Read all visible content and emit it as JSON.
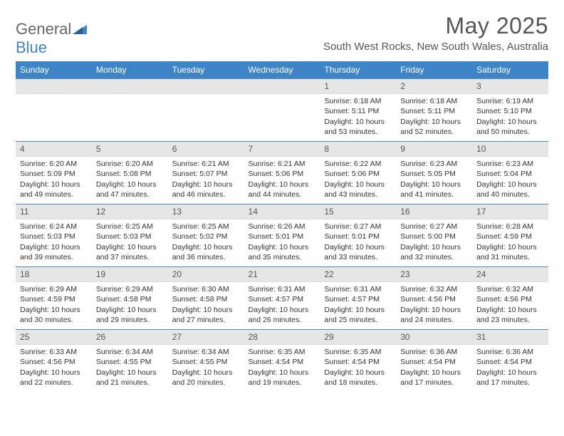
{
  "brand": {
    "text1": "General",
    "text2": "Blue"
  },
  "title": "May 2025",
  "location": "South West Rocks, New South Wales, Australia",
  "colors": {
    "header_bg": "#3d85c6",
    "header_text": "#ffffff",
    "daynum_bg": "#e6e6e6",
    "row_border": "#5b8bb5",
    "body_text": "#333333",
    "title_text": "#555555"
  },
  "weekdays": [
    "Sunday",
    "Monday",
    "Tuesday",
    "Wednesday",
    "Thursday",
    "Friday",
    "Saturday"
  ],
  "weeks": [
    [
      {
        "n": "",
        "sunrise": "",
        "sunset": "",
        "daylight": ""
      },
      {
        "n": "",
        "sunrise": "",
        "sunset": "",
        "daylight": ""
      },
      {
        "n": "",
        "sunrise": "",
        "sunset": "",
        "daylight": ""
      },
      {
        "n": "",
        "sunrise": "",
        "sunset": "",
        "daylight": ""
      },
      {
        "n": "1",
        "sunrise": "Sunrise: 6:18 AM",
        "sunset": "Sunset: 5:11 PM",
        "daylight": "Daylight: 10 hours and 53 minutes."
      },
      {
        "n": "2",
        "sunrise": "Sunrise: 6:18 AM",
        "sunset": "Sunset: 5:11 PM",
        "daylight": "Daylight: 10 hours and 52 minutes."
      },
      {
        "n": "3",
        "sunrise": "Sunrise: 6:19 AM",
        "sunset": "Sunset: 5:10 PM",
        "daylight": "Daylight: 10 hours and 50 minutes."
      }
    ],
    [
      {
        "n": "4",
        "sunrise": "Sunrise: 6:20 AM",
        "sunset": "Sunset: 5:09 PM",
        "daylight": "Daylight: 10 hours and 49 minutes."
      },
      {
        "n": "5",
        "sunrise": "Sunrise: 6:20 AM",
        "sunset": "Sunset: 5:08 PM",
        "daylight": "Daylight: 10 hours and 47 minutes."
      },
      {
        "n": "6",
        "sunrise": "Sunrise: 6:21 AM",
        "sunset": "Sunset: 5:07 PM",
        "daylight": "Daylight: 10 hours and 46 minutes."
      },
      {
        "n": "7",
        "sunrise": "Sunrise: 6:21 AM",
        "sunset": "Sunset: 5:06 PM",
        "daylight": "Daylight: 10 hours and 44 minutes."
      },
      {
        "n": "8",
        "sunrise": "Sunrise: 6:22 AM",
        "sunset": "Sunset: 5:06 PM",
        "daylight": "Daylight: 10 hours and 43 minutes."
      },
      {
        "n": "9",
        "sunrise": "Sunrise: 6:23 AM",
        "sunset": "Sunset: 5:05 PM",
        "daylight": "Daylight: 10 hours and 41 minutes."
      },
      {
        "n": "10",
        "sunrise": "Sunrise: 6:23 AM",
        "sunset": "Sunset: 5:04 PM",
        "daylight": "Daylight: 10 hours and 40 minutes."
      }
    ],
    [
      {
        "n": "11",
        "sunrise": "Sunrise: 6:24 AM",
        "sunset": "Sunset: 5:03 PM",
        "daylight": "Daylight: 10 hours and 39 minutes."
      },
      {
        "n": "12",
        "sunrise": "Sunrise: 6:25 AM",
        "sunset": "Sunset: 5:03 PM",
        "daylight": "Daylight: 10 hours and 37 minutes."
      },
      {
        "n": "13",
        "sunrise": "Sunrise: 6:25 AM",
        "sunset": "Sunset: 5:02 PM",
        "daylight": "Daylight: 10 hours and 36 minutes."
      },
      {
        "n": "14",
        "sunrise": "Sunrise: 6:26 AM",
        "sunset": "Sunset: 5:01 PM",
        "daylight": "Daylight: 10 hours and 35 minutes."
      },
      {
        "n": "15",
        "sunrise": "Sunrise: 6:27 AM",
        "sunset": "Sunset: 5:01 PM",
        "daylight": "Daylight: 10 hours and 33 minutes."
      },
      {
        "n": "16",
        "sunrise": "Sunrise: 6:27 AM",
        "sunset": "Sunset: 5:00 PM",
        "daylight": "Daylight: 10 hours and 32 minutes."
      },
      {
        "n": "17",
        "sunrise": "Sunrise: 6:28 AM",
        "sunset": "Sunset: 4:59 PM",
        "daylight": "Daylight: 10 hours and 31 minutes."
      }
    ],
    [
      {
        "n": "18",
        "sunrise": "Sunrise: 6:29 AM",
        "sunset": "Sunset: 4:59 PM",
        "daylight": "Daylight: 10 hours and 30 minutes."
      },
      {
        "n": "19",
        "sunrise": "Sunrise: 6:29 AM",
        "sunset": "Sunset: 4:58 PM",
        "daylight": "Daylight: 10 hours and 29 minutes."
      },
      {
        "n": "20",
        "sunrise": "Sunrise: 6:30 AM",
        "sunset": "Sunset: 4:58 PM",
        "daylight": "Daylight: 10 hours and 27 minutes."
      },
      {
        "n": "21",
        "sunrise": "Sunrise: 6:31 AM",
        "sunset": "Sunset: 4:57 PM",
        "daylight": "Daylight: 10 hours and 26 minutes."
      },
      {
        "n": "22",
        "sunrise": "Sunrise: 6:31 AM",
        "sunset": "Sunset: 4:57 PM",
        "daylight": "Daylight: 10 hours and 25 minutes."
      },
      {
        "n": "23",
        "sunrise": "Sunrise: 6:32 AM",
        "sunset": "Sunset: 4:56 PM",
        "daylight": "Daylight: 10 hours and 24 minutes."
      },
      {
        "n": "24",
        "sunrise": "Sunrise: 6:32 AM",
        "sunset": "Sunset: 4:56 PM",
        "daylight": "Daylight: 10 hours and 23 minutes."
      }
    ],
    [
      {
        "n": "25",
        "sunrise": "Sunrise: 6:33 AM",
        "sunset": "Sunset: 4:56 PM",
        "daylight": "Daylight: 10 hours and 22 minutes."
      },
      {
        "n": "26",
        "sunrise": "Sunrise: 6:34 AM",
        "sunset": "Sunset: 4:55 PM",
        "daylight": "Daylight: 10 hours and 21 minutes."
      },
      {
        "n": "27",
        "sunrise": "Sunrise: 6:34 AM",
        "sunset": "Sunset: 4:55 PM",
        "daylight": "Daylight: 10 hours and 20 minutes."
      },
      {
        "n": "28",
        "sunrise": "Sunrise: 6:35 AM",
        "sunset": "Sunset: 4:54 PM",
        "daylight": "Daylight: 10 hours and 19 minutes."
      },
      {
        "n": "29",
        "sunrise": "Sunrise: 6:35 AM",
        "sunset": "Sunset: 4:54 PM",
        "daylight": "Daylight: 10 hours and 18 minutes."
      },
      {
        "n": "30",
        "sunrise": "Sunrise: 6:36 AM",
        "sunset": "Sunset: 4:54 PM",
        "daylight": "Daylight: 10 hours and 17 minutes."
      },
      {
        "n": "31",
        "sunrise": "Sunrise: 6:36 AM",
        "sunset": "Sunset: 4:54 PM",
        "daylight": "Daylight: 10 hours and 17 minutes."
      }
    ]
  ]
}
